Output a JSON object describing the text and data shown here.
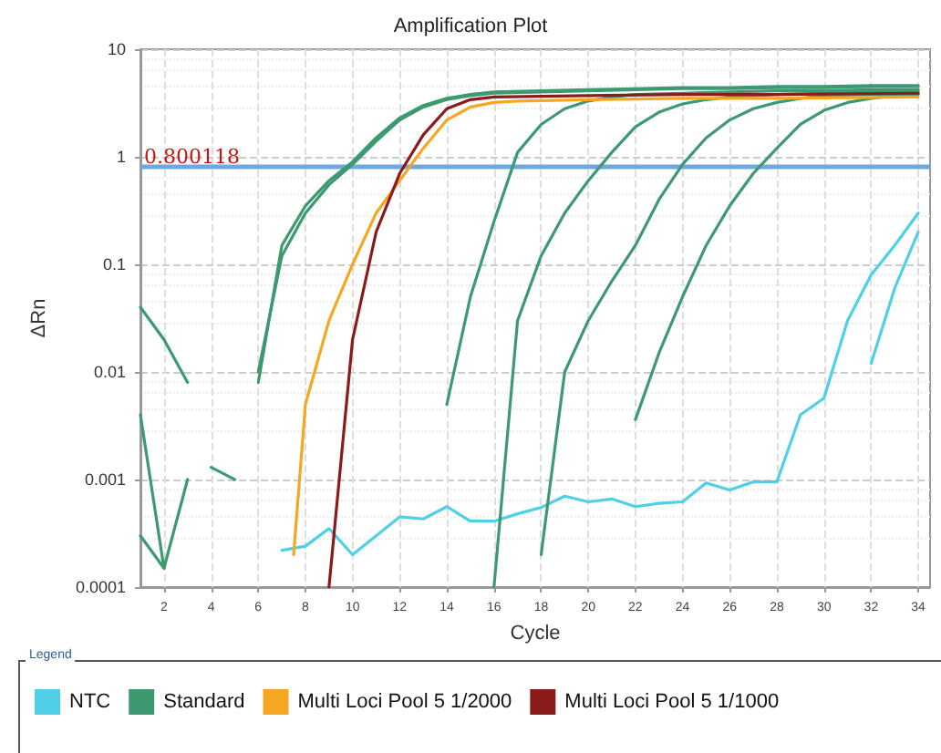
{
  "chart_data": {
    "type": "line",
    "title": "Amplification Plot",
    "xlabel": "Cycle",
    "ylabel": "ΔRn",
    "legend_title": "Legend",
    "xlim": [
      1,
      34.5
    ],
    "xticks": [
      2,
      4,
      6,
      8,
      10,
      12,
      14,
      16,
      18,
      20,
      22,
      24,
      26,
      28,
      30,
      32,
      34
    ],
    "ylim": [
      0.0001,
      10
    ],
    "yticks": [
      0.0001,
      0.001,
      0.01,
      0.1,
      1,
      10
    ],
    "log": "y",
    "grid": true,
    "legend": "bottom",
    "marker": "none",
    "line_style": "solid",
    "ref_lines": [
      {
        "axis": "y",
        "value": 0.800118,
        "label": "0.800118",
        "color": "#6fa8dc"
      }
    ],
    "series": [
      {
        "name": "NTC",
        "color": "#4fd0e6",
        "x": [
          7,
          8,
          9,
          10,
          11,
          12,
          13,
          14,
          15,
          16,
          17,
          18,
          19,
          20,
          21,
          22,
          23,
          24,
          25,
          26,
          27,
          28,
          29,
          30,
          31,
          32,
          33,
          34
        ],
        "values": [
          0.00022,
          0.00024,
          0.00035,
          0.0002,
          0.0003,
          0.00045,
          0.00043,
          0.00056,
          0.00041,
          0.00041,
          0.00048,
          0.00055,
          0.0007,
          0.00062,
          0.00066,
          0.00056,
          0.0006,
          0.00062,
          0.00093,
          0.0008,
          0.00095,
          0.00095,
          0.004,
          0.0057,
          0.03,
          0.08,
          0.15,
          0.3
        ]
      },
      {
        "color": "#4fd0e6",
        "x": [
          32,
          33,
          34
        ],
        "values": [
          0.012,
          0.06,
          0.2
        ]
      },
      {
        "name": "Standard",
        "color": "#3d9970",
        "x": [
          6,
          7,
          8,
          9,
          10,
          11,
          12,
          13,
          14,
          15,
          16,
          18,
          20,
          22,
          24,
          26,
          28,
          30,
          32,
          34
        ],
        "values": [
          0.008,
          0.15,
          0.35,
          0.6,
          0.9,
          1.5,
          2.3,
          3,
          3.5,
          3.8,
          4,
          4.1,
          4.2,
          4.3,
          4.4,
          4.4,
          4.5,
          4.5,
          4.6,
          4.6
        ]
      },
      {
        "color": "#3d9970",
        "x": [
          6,
          7,
          8,
          9,
          10,
          11,
          12,
          13,
          14,
          15,
          16,
          18,
          20,
          22,
          24,
          26,
          28,
          30,
          32,
          34
        ],
        "values": [
          0.01,
          0.12,
          0.3,
          0.55,
          0.85,
          1.4,
          2.2,
          2.9,
          3.4,
          3.7,
          3.9,
          4,
          4.1,
          4.2,
          4.3,
          4.3,
          4.4,
          4.4,
          4.5,
          4.5
        ]
      },
      {
        "color": "#3d9970",
        "x": [
          14,
          15,
          16,
          17,
          18,
          19,
          20,
          21,
          22,
          24,
          26,
          28,
          30,
          32,
          34
        ],
        "values": [
          0.005,
          0.05,
          0.25,
          1.1,
          2,
          2.8,
          3.3,
          3.6,
          3.8,
          3.9,
          4,
          4.1,
          4.1,
          4.2,
          4.2
        ]
      },
      {
        "color": "#3d9970",
        "x": [
          16,
          17,
          18,
          19,
          20,
          21,
          22,
          23,
          24,
          25,
          26,
          28,
          30,
          32,
          34
        ],
        "values": [
          0.0001,
          0.03,
          0.12,
          0.3,
          0.6,
          1.1,
          1.9,
          2.6,
          3.1,
          3.4,
          3.6,
          3.8,
          3.9,
          4,
          4.1
        ]
      },
      {
        "color": "#3d9970",
        "x": [
          18,
          19,
          20,
          21,
          22,
          23,
          24,
          25,
          26,
          27,
          28,
          29,
          30,
          32,
          34
        ],
        "values": [
          0.0002,
          0.01,
          0.03,
          0.07,
          0.15,
          0.4,
          0.85,
          1.5,
          2.2,
          2.8,
          3.2,
          3.5,
          3.7,
          3.8,
          3.9
        ]
      },
      {
        "color": "#3d9970",
        "x": [
          22,
          23,
          24,
          25,
          26,
          27,
          28,
          29,
          30,
          31,
          32,
          33,
          34
        ],
        "values": [
          0.0036,
          0.015,
          0.05,
          0.15,
          0.35,
          0.7,
          1.2,
          2,
          2.7,
          3.2,
          3.5,
          3.7,
          3.8
        ]
      },
      {
        "color": "#3d9970",
        "x": [
          1,
          2,
          3
        ],
        "values": [
          0.04,
          0.02,
          0.008
        ]
      },
      {
        "color": "#3d9970",
        "x": [
          1,
          2,
          3
        ],
        "values": [
          0.004,
          0.00015,
          0.001
        ]
      },
      {
        "color": "#3d9970",
        "x": [
          1,
          2
        ],
        "values": [
          0.0003,
          0.00015
        ]
      },
      {
        "color": "#3d9970",
        "x": [
          4,
          5
        ],
        "values": [
          0.0013,
          0.001
        ]
      },
      {
        "name": "Multi Loci Pool 5 1/2000",
        "color": "#f5a623",
        "x": [
          7.5,
          8,
          9,
          10,
          11,
          12,
          13,
          14,
          15,
          16,
          17,
          20,
          24,
          28,
          34
        ],
        "values": [
          0.0002,
          0.005,
          0.03,
          0.1,
          0.3,
          0.6,
          1.2,
          2.2,
          2.9,
          3.2,
          3.3,
          3.4,
          3.5,
          3.5,
          3.6
        ]
      },
      {
        "name": "Multi Loci Pool 5 1/1000",
        "color": "#8b1a1a",
        "x": [
          9,
          10,
          11,
          12,
          13,
          14,
          15,
          16,
          20,
          24,
          28,
          34
        ],
        "values": [
          0.0001,
          0.02,
          0.2,
          0.7,
          1.6,
          2.8,
          3.4,
          3.6,
          3.7,
          3.8,
          3.8,
          3.9
        ]
      }
    ]
  }
}
